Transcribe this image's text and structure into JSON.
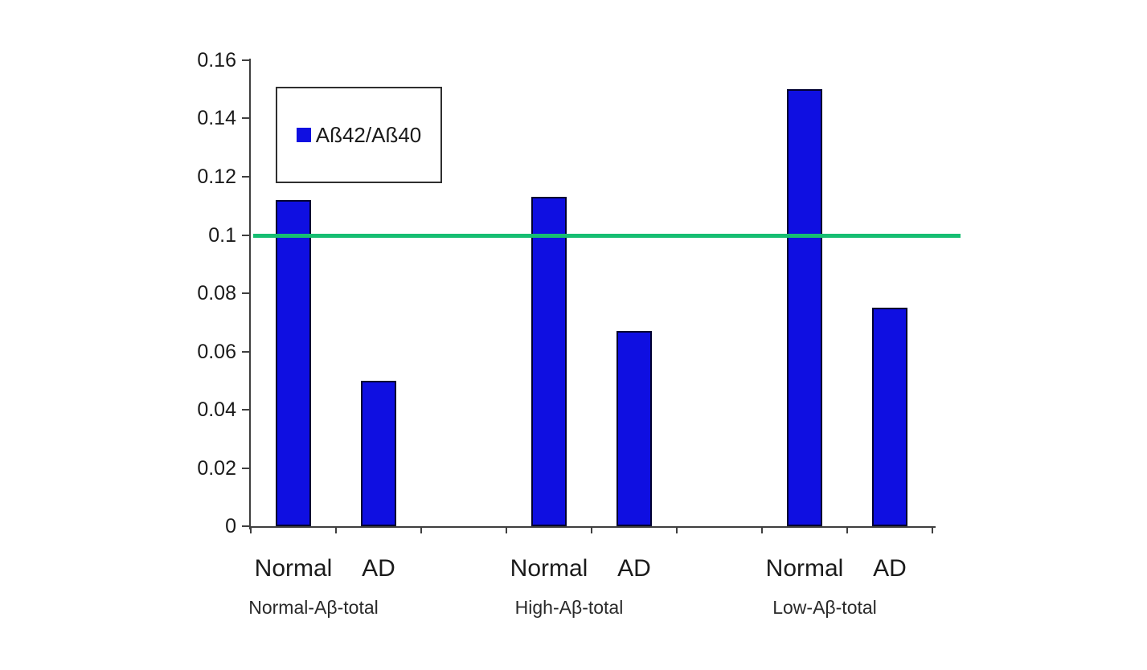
{
  "chart_data": {
    "type": "bar",
    "title": "",
    "legend": {
      "label": "Aß42/Aß40",
      "marker_color": "#0f0fe1",
      "position": "upper-left-inside"
    },
    "y_axis": {
      "min": 0,
      "max": 0.16,
      "tick_step": 0.02,
      "tick_labels": [
        "0.16",
        "0.14",
        "0.12",
        "0.1",
        "0.08",
        "0.06",
        "0.04",
        "0.02",
        "0"
      ]
    },
    "x_axis": {
      "bar_labels": [
        "Normal",
        "AD",
        "Normal",
        "AD",
        "Normal",
        "AD"
      ]
    },
    "categories": [
      "Normal-Aβ-total",
      "High-Aβ-total",
      "Low-Aβ-total"
    ],
    "groups": [
      {
        "label": "Normal-Aβ-total",
        "bars": [
          {
            "label": "Normal",
            "value": 0.112
          },
          {
            "label": "AD",
            "value": 0.05
          }
        ]
      },
      {
        "label": "High-Aβ-total",
        "bars": [
          {
            "label": "Normal",
            "value": 0.113
          },
          {
            "label": "AD",
            "value": 0.067
          }
        ]
      },
      {
        "label": "Low-Aβ-total",
        "bars": [
          {
            "label": "Normal",
            "value": 0.15
          },
          {
            "label": "AD",
            "value": 0.075
          }
        ]
      }
    ],
    "reference_line": {
      "value": 0.1,
      "color": "#16be72"
    },
    "colors": {
      "bar_fill": "#0f0fe1",
      "bar_border": "#000030",
      "axis": "#3f3f3f",
      "text": "#1a1a1a",
      "background": "#ffffff"
    },
    "layout_hints": {
      "grid": "off",
      "gap_slot_between_groups": true
    }
  }
}
